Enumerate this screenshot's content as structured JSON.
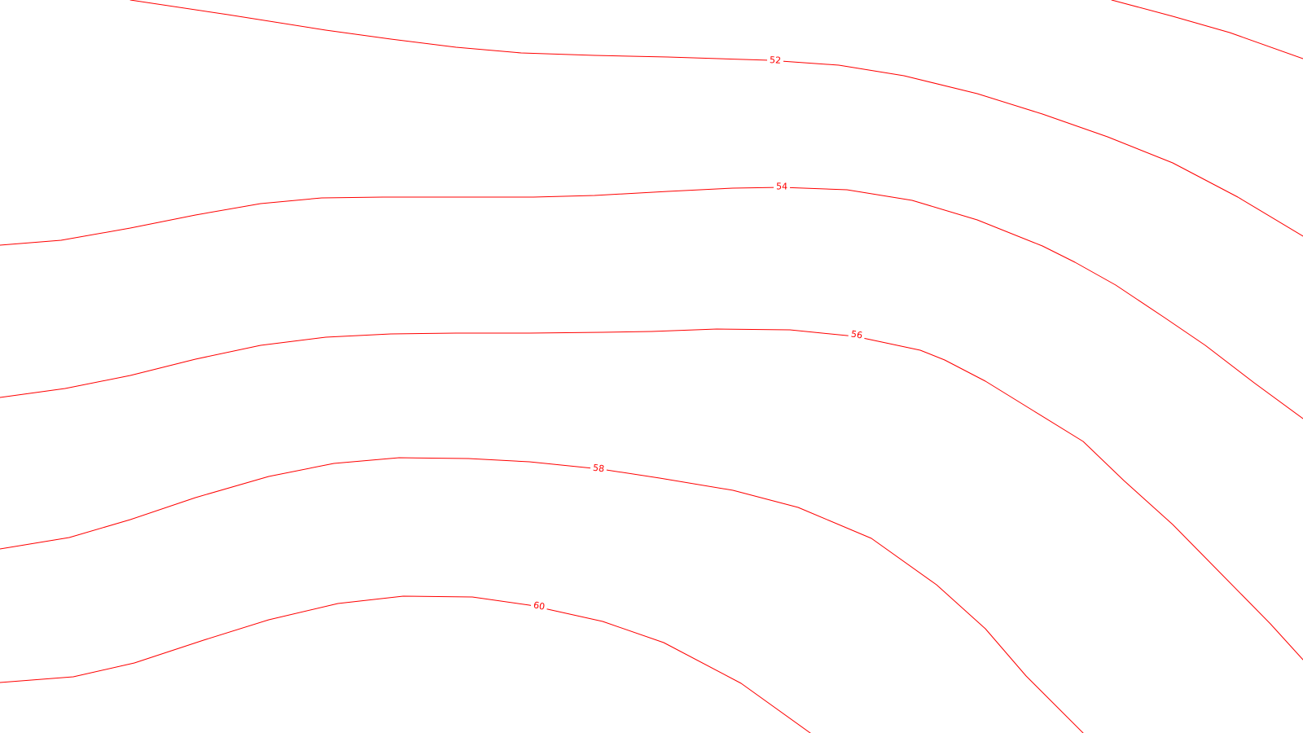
{
  "map": {
    "line_color": "#ff0000",
    "background_color": "#ffffff",
    "contours": [
      {
        "id": "contour-50",
        "label": ""
      },
      {
        "id": "contour-52",
        "label": "52"
      },
      {
        "id": "contour-54",
        "label": "54"
      },
      {
        "id": "contour-56",
        "label": "56"
      },
      {
        "id": "contour-58",
        "label": "58"
      },
      {
        "id": "contour-60",
        "label": "60"
      }
    ]
  }
}
